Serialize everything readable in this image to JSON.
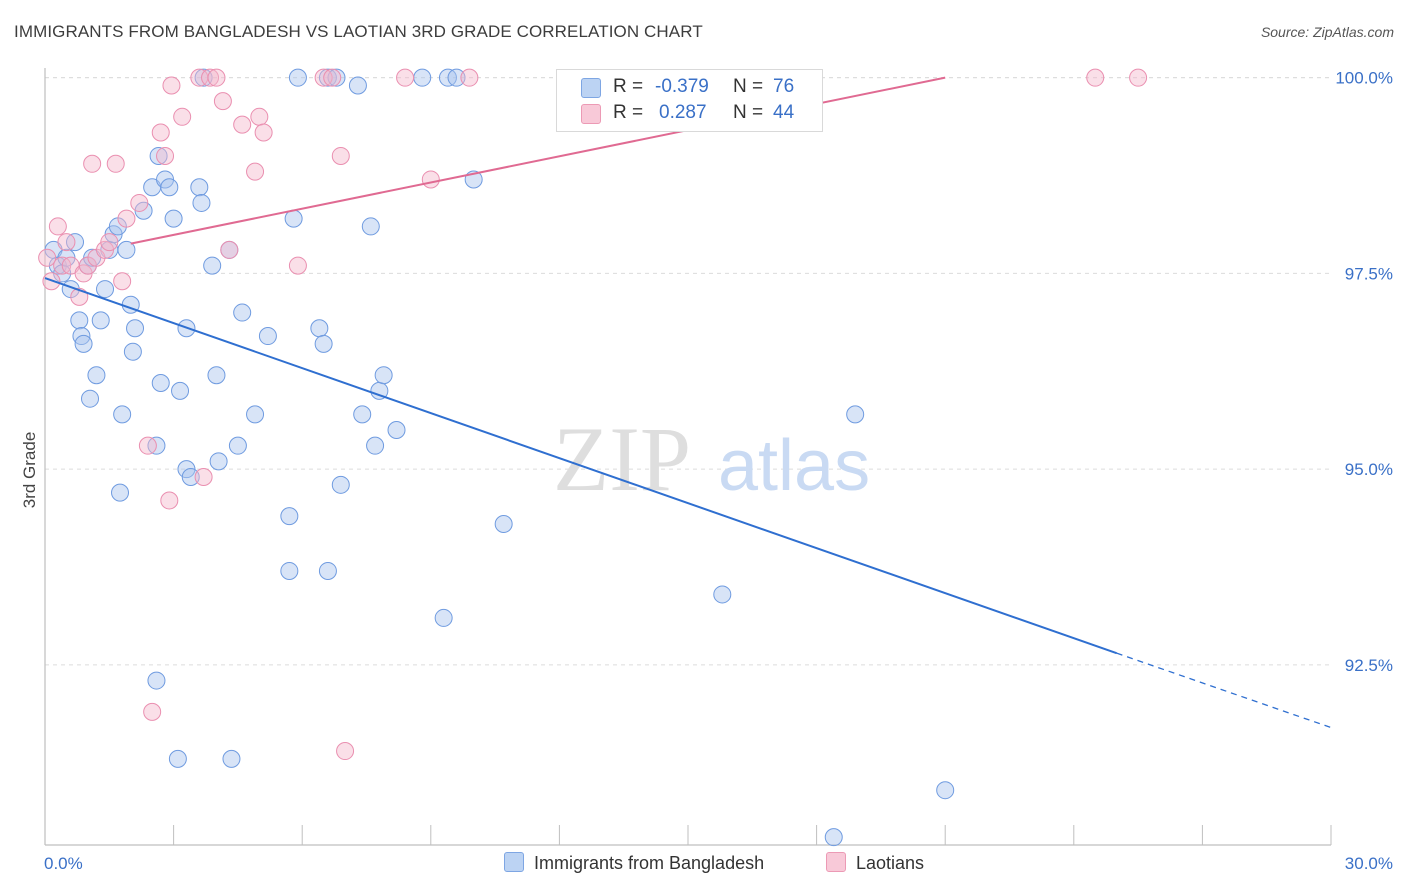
{
  "header": {
    "title": "IMMIGRANTS FROM BANGLADESH VS LAOTIAN 3RD GRADE CORRELATION CHART",
    "source": "Source: ZipAtlas.com"
  },
  "watermark": {
    "zip": "ZIP",
    "atlas": "atlas"
  },
  "legend": {
    "rows": [
      {
        "r_label": "R =",
        "r_value": "-0.379",
        "n_label": "N =",
        "n_value": "76",
        "color": "#a8c4ee"
      },
      {
        "r_label": "R =",
        "r_value": "0.287",
        "n_label": "N =",
        "n_value": "44",
        "color": "#f4b8cb"
      }
    ]
  },
  "bottom_legend": {
    "items": [
      {
        "label": "Immigrants from Bangladesh",
        "color": "#a8c4ee"
      },
      {
        "label": "Laotians",
        "color": "#f4b8cb"
      }
    ]
  },
  "chart_data": {
    "type": "scatter",
    "title": "IMMIGRANTS FROM BANGLADESH VS LAOTIAN 3RD GRADE CORRELATION CHART",
    "xlabel": "",
    "ylabel": "3rd Grade",
    "xlim": [
      0,
      30
    ],
    "ylim": [
      90.2,
      100.2
    ],
    "x_tick_labels": [
      "0.0%",
      "30.0%"
    ],
    "y_ticks": [
      92.5,
      95.0,
      97.5,
      100.0
    ],
    "y_tick_labels": [
      "92.5%",
      "95.0%",
      "97.5%",
      "100.0%"
    ],
    "grid": true,
    "legend_position": "top-center",
    "series": [
      {
        "name": "Immigrants from Bangladesh",
        "color": "#5b8fe0",
        "points": [
          [
            0.2,
            97.8
          ],
          [
            0.3,
            97.6
          ],
          [
            0.4,
            97.5
          ],
          [
            0.5,
            97.7
          ],
          [
            0.6,
            97.3
          ],
          [
            0.7,
            97.9
          ],
          [
            0.8,
            96.9
          ],
          [
            0.85,
            96.7
          ],
          [
            0.9,
            96.6
          ],
          [
            1.0,
            97.6
          ],
          [
            1.05,
            95.9
          ],
          [
            1.1,
            97.7
          ],
          [
            1.2,
            96.2
          ],
          [
            1.3,
            96.9
          ],
          [
            1.4,
            97.3
          ],
          [
            1.5,
            97.8
          ],
          [
            1.6,
            98.0
          ],
          [
            1.7,
            98.1
          ],
          [
            1.75,
            94.7
          ],
          [
            1.8,
            95.7
          ],
          [
            1.9,
            97.8
          ],
          [
            2.0,
            97.1
          ],
          [
            2.05,
            96.5
          ],
          [
            2.1,
            96.8
          ],
          [
            2.3,
            98.3
          ],
          [
            2.5,
            98.6
          ],
          [
            2.6,
            95.3
          ],
          [
            2.6,
            92.3
          ],
          [
            2.65,
            99.0
          ],
          [
            2.7,
            96.1
          ],
          [
            2.8,
            98.7
          ],
          [
            2.9,
            98.6
          ],
          [
            3.0,
            98.2
          ],
          [
            3.1,
            91.3
          ],
          [
            3.15,
            96.0
          ],
          [
            3.3,
            96.8
          ],
          [
            3.3,
            95.0
          ],
          [
            3.4,
            94.9
          ],
          [
            3.6,
            98.6
          ],
          [
            3.65,
            98.4
          ],
          [
            3.7,
            100.0
          ],
          [
            3.9,
            97.6
          ],
          [
            4.0,
            96.2
          ],
          [
            4.05,
            95.1
          ],
          [
            4.3,
            97.8
          ],
          [
            4.35,
            91.3
          ],
          [
            4.5,
            95.3
          ],
          [
            4.6,
            97.0
          ],
          [
            4.9,
            95.7
          ],
          [
            5.2,
            96.7
          ],
          [
            5.7,
            94.4
          ],
          [
            5.7,
            93.7
          ],
          [
            5.8,
            98.2
          ],
          [
            5.9,
            100.0
          ],
          [
            6.4,
            96.8
          ],
          [
            6.5,
            96.6
          ],
          [
            6.6,
            100.0
          ],
          [
            6.6,
            93.7
          ],
          [
            6.8,
            100.0
          ],
          [
            6.9,
            94.8
          ],
          [
            7.3,
            99.9
          ],
          [
            7.4,
            95.7
          ],
          [
            7.6,
            98.1
          ],
          [
            7.7,
            95.3
          ],
          [
            7.8,
            96.0
          ],
          [
            7.9,
            96.2
          ],
          [
            8.2,
            95.5
          ],
          [
            8.8,
            100.0
          ],
          [
            9.3,
            93.1
          ],
          [
            9.4,
            100.0
          ],
          [
            9.6,
            100.0
          ],
          [
            10.0,
            98.7
          ],
          [
            10.7,
            94.3
          ],
          [
            15.8,
            93.4
          ],
          [
            18.4,
            90.3
          ],
          [
            18.9,
            95.7
          ],
          [
            21.0,
            90.9
          ]
        ],
        "trend": {
          "x": [
            0.0,
            25.0
          ],
          "y": [
            97.44,
            92.65
          ],
          "dashed_extension_x": [
            25.0,
            30.0
          ],
          "dashed_extension_y": [
            92.65,
            91.7
          ]
        }
      },
      {
        "name": "Laotians",
        "color": "#e87aa0",
        "points": [
          [
            0.15,
            97.4
          ],
          [
            0.3,
            98.1
          ],
          [
            0.4,
            97.6
          ],
          [
            0.5,
            97.9
          ],
          [
            0.6,
            97.6
          ],
          [
            0.8,
            97.2
          ],
          [
            0.9,
            97.5
          ],
          [
            1.0,
            97.6
          ],
          [
            1.1,
            98.9
          ],
          [
            1.2,
            97.7
          ],
          [
            1.4,
            97.8
          ],
          [
            1.5,
            97.9
          ],
          [
            1.65,
            98.9
          ],
          [
            1.8,
            97.4
          ],
          [
            1.9,
            98.2
          ],
          [
            2.2,
            98.4
          ],
          [
            2.4,
            95.3
          ],
          [
            2.5,
            91.9
          ],
          [
            2.7,
            99.3
          ],
          [
            2.8,
            99.0
          ],
          [
            2.9,
            94.6
          ],
          [
            2.95,
            99.9
          ],
          [
            3.2,
            99.5
          ],
          [
            3.6,
            100.0
          ],
          [
            3.7,
            94.9
          ],
          [
            3.85,
            100.0
          ],
          [
            4.0,
            100.0
          ],
          [
            4.15,
            99.7
          ],
          [
            4.3,
            97.8
          ],
          [
            4.6,
            99.4
          ],
          [
            4.9,
            98.8
          ],
          [
            5.0,
            99.5
          ],
          [
            5.1,
            99.3
          ],
          [
            5.9,
            97.6
          ],
          [
            6.5,
            100.0
          ],
          [
            6.7,
            100.0
          ],
          [
            6.9,
            99.0
          ],
          [
            7.0,
            91.4
          ],
          [
            8.4,
            100.0
          ],
          [
            9.0,
            98.7
          ],
          [
            9.9,
            100.0
          ],
          [
            24.5,
            100.0
          ],
          [
            25.5,
            100.0
          ],
          [
            0.05,
            97.7
          ]
        ],
        "trend": {
          "x": [
            2.0,
            21.0
          ],
          "y": [
            97.88,
            100.0
          ]
        }
      }
    ]
  }
}
